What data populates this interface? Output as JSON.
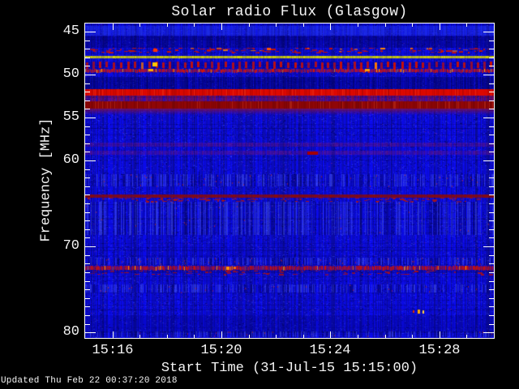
{
  "footer": {
    "updated": "Updated Thu Feb 22 00:37:20 2018"
  },
  "chart_data": {
    "type": "heatmap",
    "subtype": "radio-spectrogram",
    "title": "Solar radio Flux (Glasgow)",
    "xlabel": "Start Time (31-Jul-15 15:15:00)",
    "ylabel": "Frequency [MHz]",
    "x_start_time": "15:15:00",
    "x_range_minutes": [
      0,
      15
    ],
    "x_ticks": [
      {
        "t": 1,
        "label": "15:16"
      },
      {
        "t": 5,
        "label": "15:20"
      },
      {
        "t": 9,
        "label": "15:24"
      },
      {
        "t": 13,
        "label": "15:28"
      }
    ],
    "x_minor_step_minutes": 1,
    "y_range_mhz": [
      44.05,
      80.65
    ],
    "y_axis_inverted": true,
    "y_ticks": [
      {
        "f": 45,
        "label": "45"
      },
      {
        "f": 50,
        "label": "50"
      },
      {
        "f": 55,
        "label": "55"
      },
      {
        "f": 60,
        "label": "60"
      },
      {
        "f": 70,
        "label": "70"
      },
      {
        "f": 80,
        "label": "80"
      }
    ],
    "y_minor_step_mhz": 1,
    "colormap": "blue(low) -> red -> yellow(high)",
    "background_color": "#0a0ac8",
    "bands": [
      {
        "f0": 44.3,
        "f1": 45.45,
        "style": "noise",
        "color": "#2233ee",
        "alpha": 0.8,
        "desc": "bright blue noise band at top"
      },
      {
        "f0": 45.45,
        "f1": 46.9,
        "style": "noise",
        "color": "#000060",
        "alpha": 0.6,
        "desc": "dark streaky band"
      },
      {
        "f0": 46.9,
        "f1": 47.45,
        "style": "dashes",
        "color": "#cc1100",
        "color2": "#ff8800",
        "density": 150,
        "desc": "row of red interference dashes ~47 MHz"
      },
      {
        "f0": 47.8,
        "f1": 48.15,
        "style": "hline",
        "color": "#d8d800",
        "desc": "bright yellow interference line ~48 MHz"
      },
      {
        "f0": 48.45,
        "f1": 49.3,
        "style": "comb",
        "color": "#d01000",
        "period": 8.4,
        "barw": 3,
        "desc": "periodic red comb interference ~49 MHz"
      },
      {
        "f0": 49.3,
        "f1": 49.75,
        "style": "streak",
        "color": "#dd1500",
        "color2": "#ffaa00",
        "desc": "patchy red streak line"
      },
      {
        "f0": 50.3,
        "f1": 51.7,
        "style": "noise",
        "color": "#000058",
        "alpha": 0.65,
        "desc": "dark navy band"
      },
      {
        "f0": 51.7,
        "f1": 52.45,
        "style": "solid",
        "color": "#dd0800",
        "desc": "bright red band ~52 MHz"
      },
      {
        "f0": 52.45,
        "f1": 53.1,
        "style": "mixed",
        "color": "#c01010",
        "alpha": 0.6,
        "desc": "red/blue mixed rows"
      },
      {
        "f0": 53.1,
        "f1": 53.95,
        "style": "solid",
        "color": "#900606",
        "desc": "dark red band ~53.5 MHz"
      },
      {
        "f0": 53.95,
        "f1": 54.7,
        "style": "fade",
        "color": "#801050",
        "desc": "purple fade below red band"
      },
      {
        "f0": 57.95,
        "f1": 58.4,
        "style": "mixed",
        "color": "#7a1478",
        "alpha": 0.55,
        "desc": "purple band"
      },
      {
        "f0": 58.85,
        "f1": 59.3,
        "style": "mixed",
        "color": "#7a1478",
        "alpha": 0.55,
        "desc": "purple band with red blob"
      },
      {
        "f0": 61.6,
        "f1": 63.0,
        "style": "stripes",
        "red": 0.06,
        "desc": "vertical striped noise"
      },
      {
        "f0": 64.0,
        "f1": 64.35,
        "style": "hline",
        "color": "#8a0a0a",
        "desc": "dark red line ~64 MHz"
      },
      {
        "f0": 64.35,
        "f1": 64.8,
        "style": "dashes",
        "color": "#aa1414",
        "density": 110,
        "desc": "red speckles"
      },
      {
        "f0": 64.8,
        "f1": 68.7,
        "style": "stripes",
        "red": 0.05,
        "desc": "striped noise region"
      },
      {
        "f0": 71.3,
        "f1": 72.2,
        "style": "stripes",
        "red": 0.09,
        "desc": "speckle band with red flecks"
      },
      {
        "f0": 72.25,
        "f1": 72.75,
        "style": "streak",
        "color": "#d01000",
        "color2": "#ff9900",
        "desc": "red line ~72.5 MHz"
      },
      {
        "f0": 72.75,
        "f1": 73.3,
        "style": "dashes",
        "color": "#b01010",
        "density": 80,
        "desc": "red speckles below line"
      },
      {
        "f0": 74.4,
        "f1": 75.4,
        "style": "stripes",
        "red": 0.05,
        "desc": "striped noise"
      },
      {
        "f0": 78.0,
        "f1": 80.0,
        "style": "noise",
        "color": "#000070",
        "alpha": 0.35,
        "desc": "slightly darker bottom region"
      },
      {
        "f0": 79.9,
        "f1": 80.6,
        "style": "stripes",
        "red": 0.03,
        "desc": "bottom striped row"
      }
    ],
    "features": [
      {
        "t": 8.35,
        "f": 59.1,
        "w": 13,
        "h": 4,
        "color": "#a50000",
        "desc": "dark red blob ~15:23 at 59 MHz"
      },
      {
        "t": 5.25,
        "f": 72.5,
        "w": 4,
        "h": 4,
        "color": "#ff9500",
        "desc": "orange hotspot on 72.5 MHz line"
      },
      {
        "t": 5.5,
        "f": 72.5,
        "w": 3,
        "h": 3,
        "color": "#ff6a00",
        "desc": "orange hotspot"
      },
      {
        "t": 12.25,
        "f": 77.6,
        "w": 3,
        "h": 5,
        "color": "#ffaa00",
        "desc": "bright orange dot ~15:27 at 77.6 MHz"
      },
      {
        "t": 12.4,
        "f": 77.6,
        "w": 2,
        "h": 4,
        "color": "#ffd040",
        "desc": "bright yellow dot"
      },
      {
        "t": 12.05,
        "f": 77.65,
        "w": 2,
        "h": 3,
        "color": "#e03000",
        "desc": "red dot"
      },
      {
        "t": 2.6,
        "f": 47.15,
        "w": 5,
        "h": 4,
        "color": "#ff3300",
        "desc": "red spot in 47 MHz dash row"
      },
      {
        "t": 6.75,
        "f": 47.1,
        "w": 5,
        "h": 3,
        "color": "#ff5500",
        "desc": "red spot in 47 MHz dash row"
      },
      {
        "t": 2.55,
        "f": 48.9,
        "w": 6,
        "h": 5,
        "color": "#ffc800",
        "desc": "bright yellow spot in comb band"
      },
      {
        "t": 2.4,
        "f": 49.55,
        "w": 6,
        "h": 3,
        "color": "#ffb000",
        "desc": "orange patch on streak line"
      },
      {
        "t": 10.4,
        "f": 49.5,
        "w": 5,
        "h": 3,
        "color": "#ffa000",
        "desc": "orange patch on streak line"
      }
    ]
  }
}
